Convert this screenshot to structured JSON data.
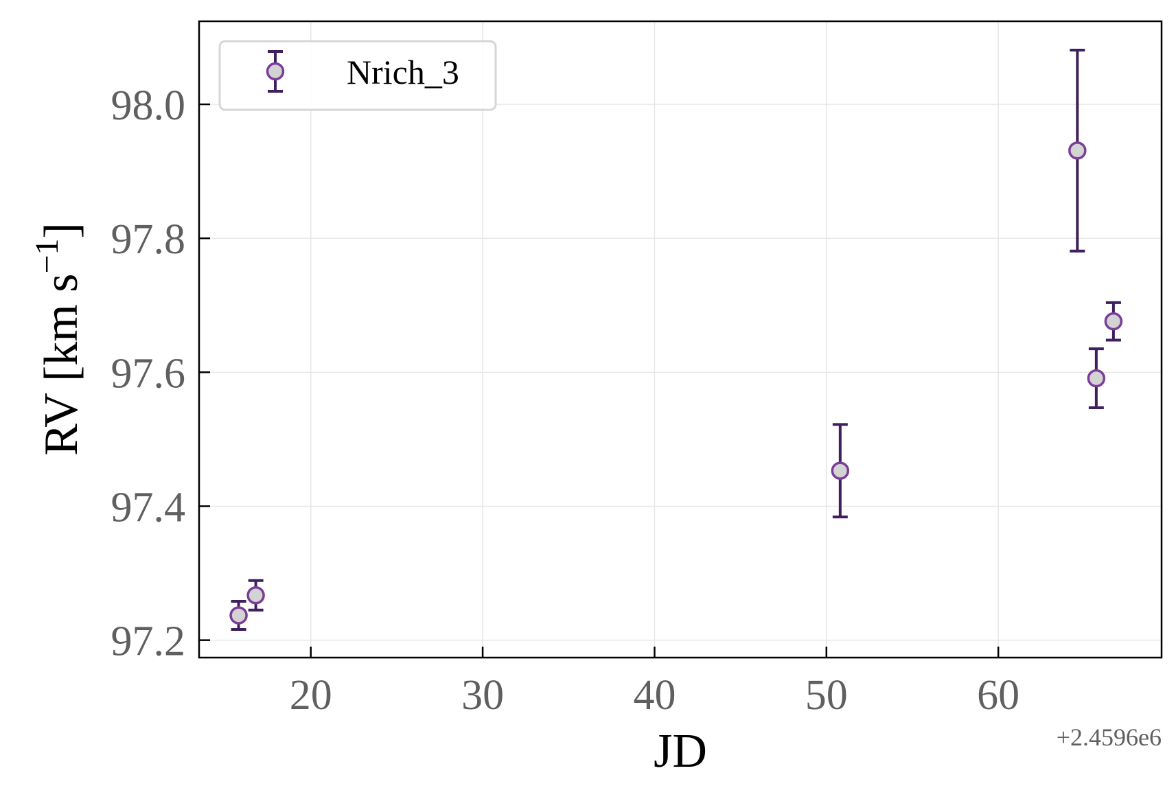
{
  "chart_data": {
    "type": "scatter",
    "xlabel": "JD",
    "ylabel": "RV [km s",
    "ylabel_sup": "−1",
    "ylabel_close": "]",
    "x_offset_label": "+2.4596e6",
    "xlim": [
      13.5,
      69.5
    ],
    "ylim": [
      97.174,
      98.124
    ],
    "xticks": [
      20,
      30,
      40,
      50,
      60
    ],
    "xtick_labels": [
      "20",
      "30",
      "40",
      "50",
      "60"
    ],
    "yticks": [
      97.2,
      97.4,
      97.6,
      97.8,
      98.0
    ],
    "ytick_labels": [
      "97.2",
      "97.4",
      "97.6",
      "97.8",
      "98.0"
    ],
    "grid": true,
    "legend": "top-left",
    "series": [
      {
        "name": "Nrich_3",
        "marker_face": "#d3d3d3",
        "marker_edge": "#7a3d98",
        "errorbar_color": "#3f1f5c",
        "points": [
          {
            "x": 15.8,
            "y": 97.237,
            "err": 0.021
          },
          {
            "x": 16.8,
            "y": 97.267,
            "err": 0.022
          },
          {
            "x": 50.8,
            "y": 97.453,
            "err": 0.069
          },
          {
            "x": 64.6,
            "y": 97.931,
            "err": 0.15
          },
          {
            "x": 65.7,
            "y": 97.591,
            "err": 0.044
          },
          {
            "x": 66.7,
            "y": 97.676,
            "err": 0.028
          }
        ]
      }
    ]
  }
}
